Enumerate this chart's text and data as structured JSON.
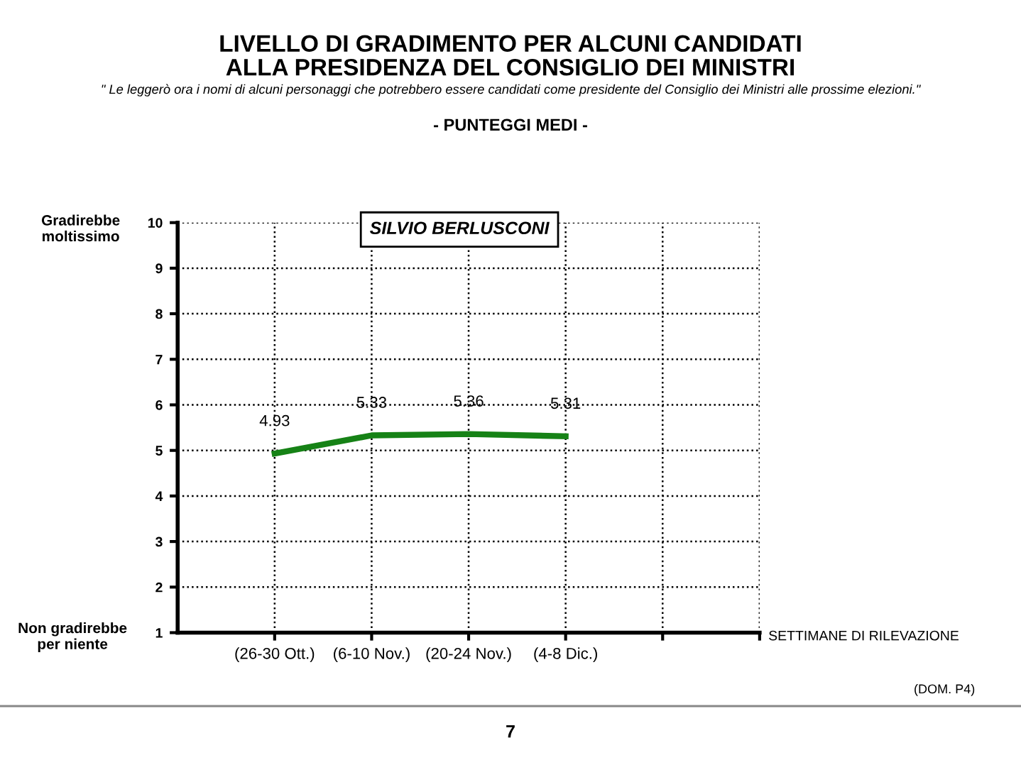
{
  "chart_data": {
    "type": "line",
    "title": "LIVELLO DI GRADIMENTO PER ALCUNI CANDIDATI\nALLA PRESIDENZA DEL CONSIGLIO DEI MINISTRI",
    "subtitle": "- PUNTEGGI MEDI -",
    "xlabel": "SETTIMANE DI RILEVAZIONE",
    "annotations": [
      "\" Le leggerò ora i nomi di alcuni personaggi che potrebbero essere candidati come presidente del Consiglio dei Ministri alle prossime elezioni.\"",
      "SILVIO BERLUSCONI",
      "Gradirebbe\nmoltissimo",
      "Non gradirebbe\nper niente",
      "(DOM. P4)",
      "7"
    ],
    "categories": [
      "(26-30 Ott.)",
      "(6-10 Nov.)",
      "(20-24 Nov.)",
      "(4-8 Dic.)",
      null,
      null
    ],
    "series": [
      {
        "color": "#168216",
        "values": [
          4.93,
          5.33,
          5.36,
          5.31,
          null,
          null
        ]
      }
    ],
    "ylim": [
      1,
      10
    ],
    "yticks": [
      1,
      2,
      3,
      4,
      5,
      6,
      7,
      8,
      9,
      10
    ],
    "grid": true,
    "data_labels": true,
    "marker": "none",
    "line_style": "solid",
    "legend": false
  }
}
